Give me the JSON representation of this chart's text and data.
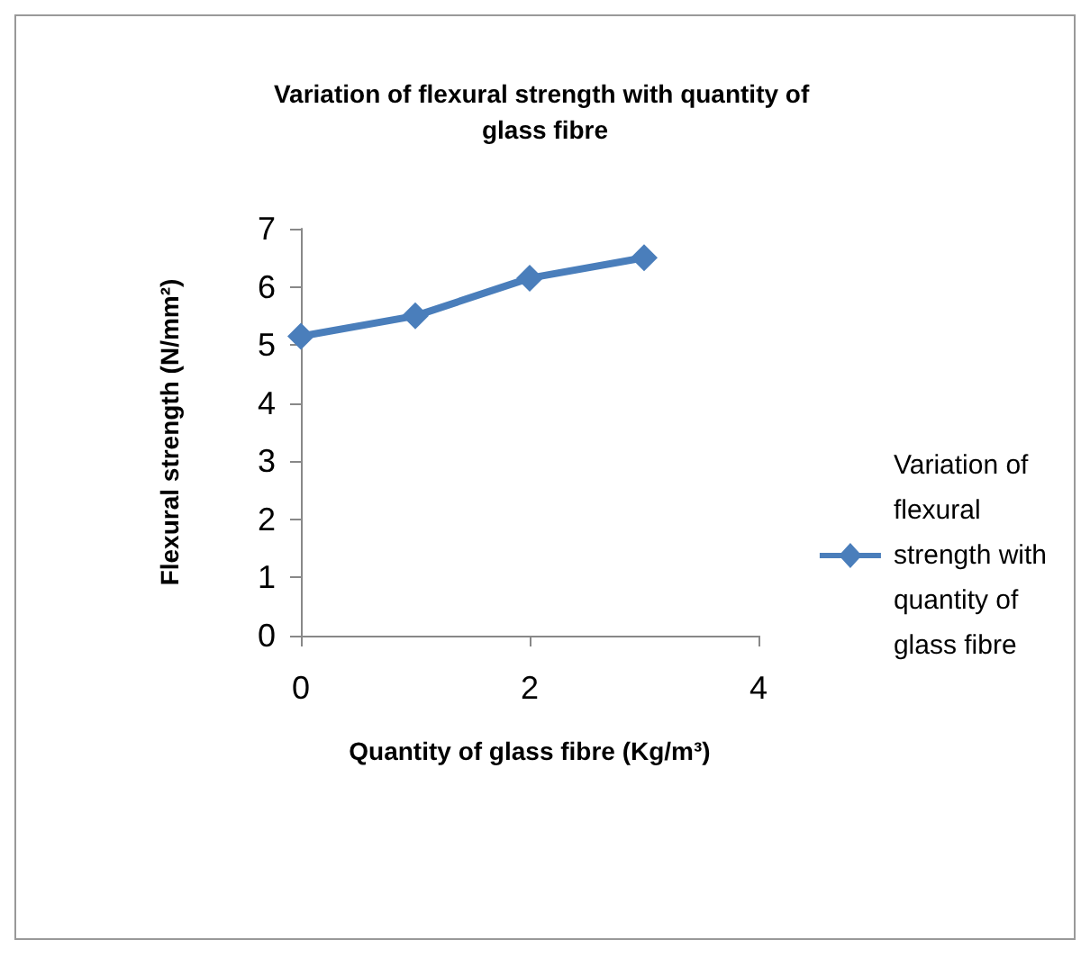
{
  "chart_data": {
    "type": "line",
    "title": "Variation of flexural strength with quantity of glass fibre",
    "xlabel": "Quantity of glass fibre (Kg/m³)",
    "ylabel": "Flexural strength (N/mm²)",
    "x": [
      0,
      1,
      2,
      3
    ],
    "series": [
      {
        "name": "Variation of flexural strength with quantity of glass fibre",
        "color": "#4a7ebb",
        "values": [
          5.15,
          5.5,
          6.15,
          6.5
        ]
      }
    ],
    "xlim": [
      0,
      4
    ],
    "xticks": [
      0,
      2,
      4
    ],
    "ylim": [
      0,
      7
    ],
    "yticks": [
      0,
      1,
      2,
      3,
      4,
      5,
      6,
      7
    ],
    "grid": false,
    "legend": "right",
    "marker": "diamond",
    "line_style": "solid"
  }
}
